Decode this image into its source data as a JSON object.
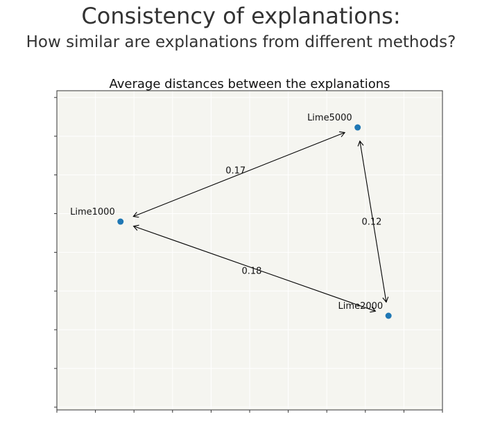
{
  "header": {
    "title": "Consistency of explanations:",
    "subtitle": "How similar are explanations from different methods?"
  },
  "chart_data": {
    "type": "scatter",
    "title": "Average distances between the explanations",
    "xlabel": "",
    "ylabel": "",
    "xlim": [
      0,
      10
    ],
    "ylim": [
      0,
      10
    ],
    "grid": true,
    "tick_labels": false,
    "points": [
      {
        "name": "Lime1000",
        "x": 1.65,
        "y": 5.9
      },
      {
        "name": "Lime5000",
        "x": 7.8,
        "y": 8.85
      },
      {
        "name": "Lime2000",
        "x": 8.6,
        "y": 2.95
      }
    ],
    "edges": [
      {
        "from": "Lime1000",
        "to": "Lime5000",
        "distance": "0.17"
      },
      {
        "from": "Lime5000",
        "to": "Lime2000",
        "distance": "0.12"
      },
      {
        "from": "Lime1000",
        "to": "Lime2000",
        "distance": "0.18"
      }
    ],
    "colors": {
      "point": "#1f77b4",
      "background": "#f5f5f0",
      "grid": "#ffffff",
      "arrow": "#000000"
    }
  }
}
